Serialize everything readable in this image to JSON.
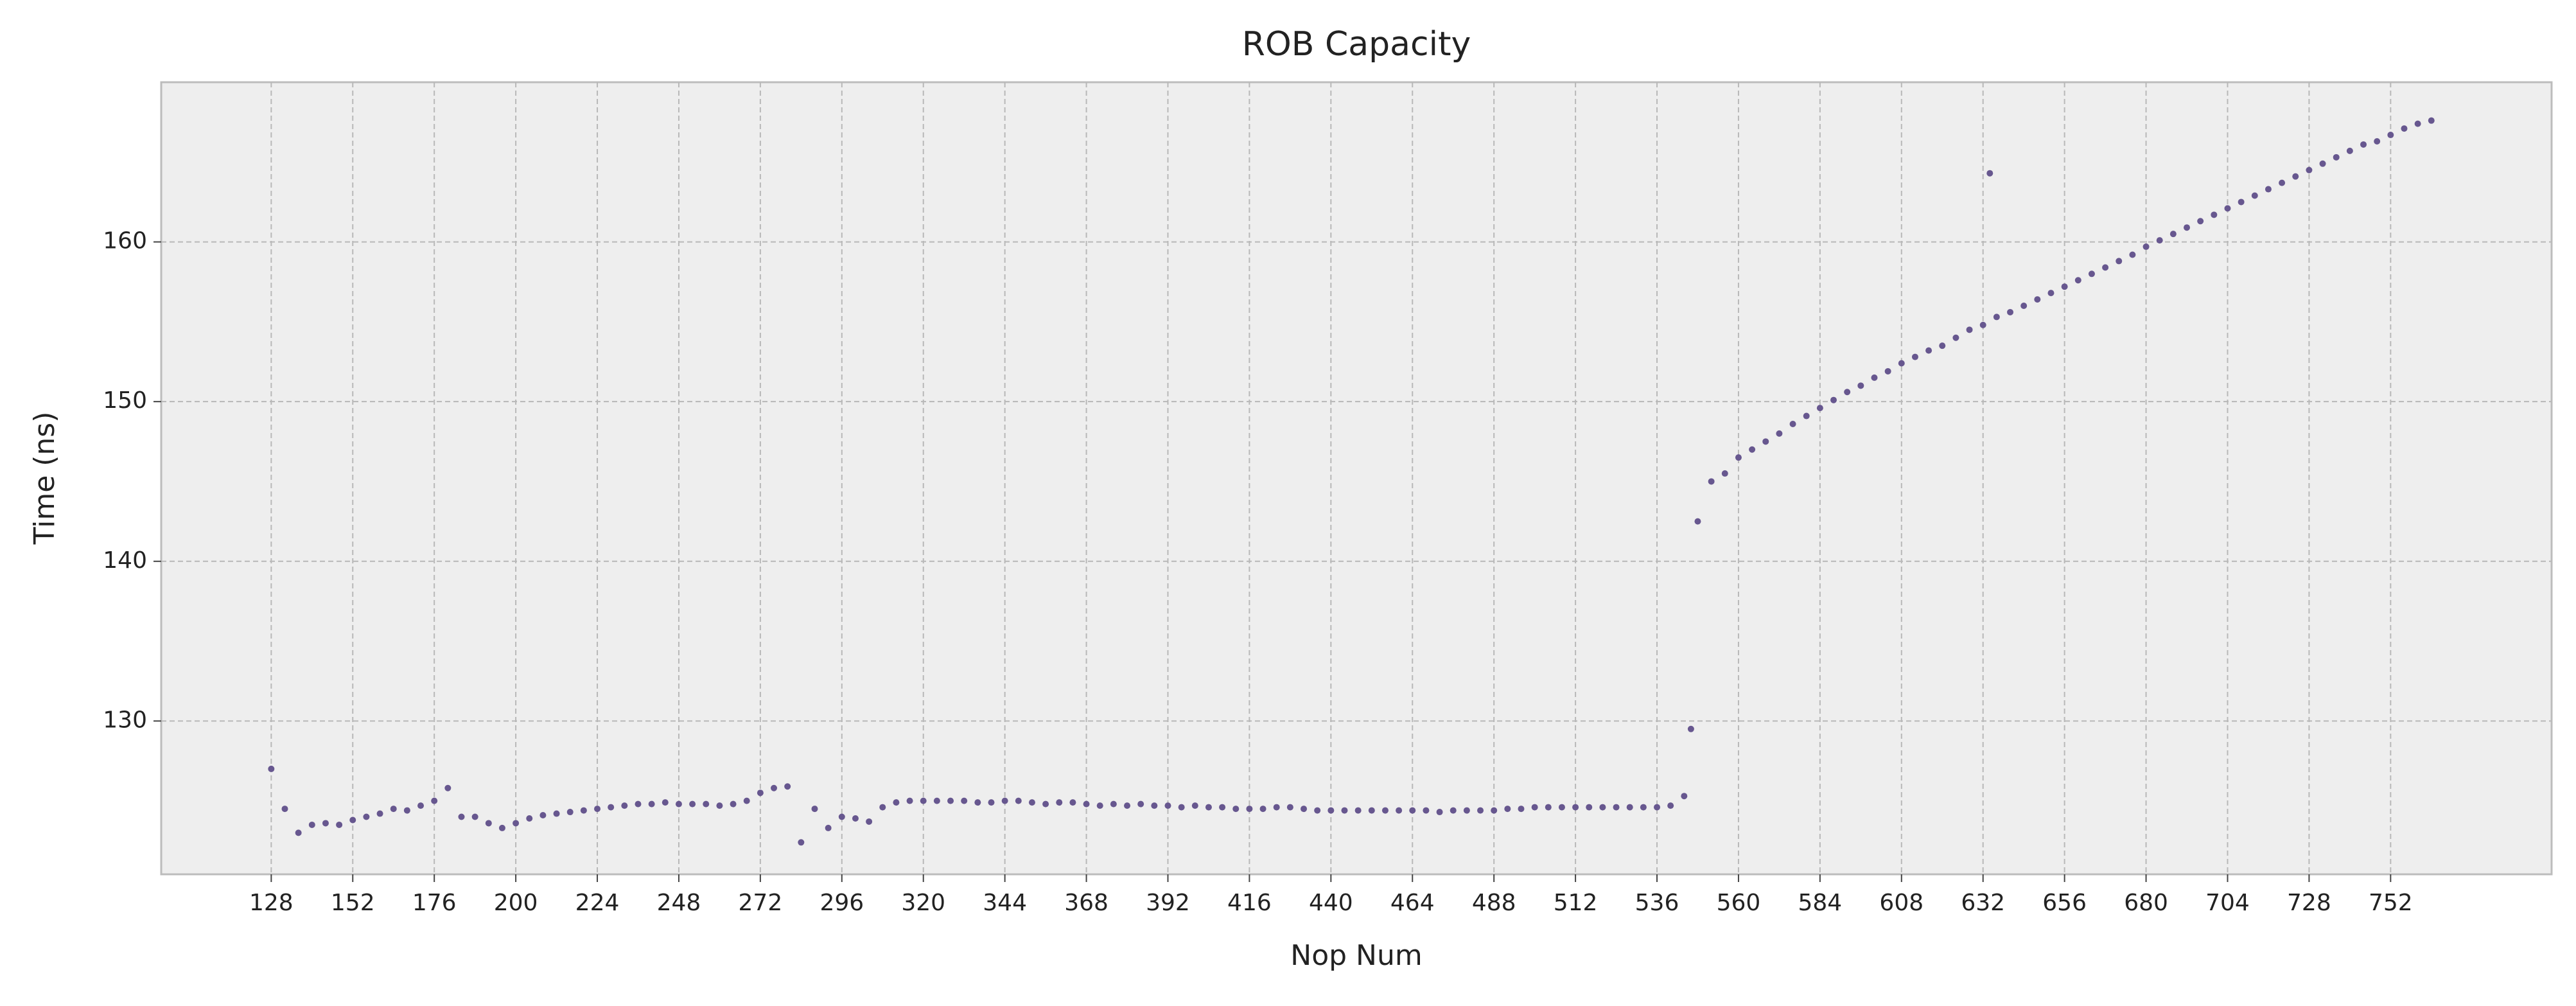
{
  "chart_data": {
    "type": "scatter",
    "title": "ROB Capacity",
    "x_label": "Nop Num",
    "y_label": "Time (ns)",
    "color": "#67578f",
    "grid": true,
    "xlim": [
      95.6,
      799.4
    ],
    "ylim": [
      120.4,
      170
    ],
    "xticks": [
      128,
      152,
      176,
      200,
      224,
      248,
      272,
      296,
      320,
      344,
      368,
      392,
      416,
      440,
      464,
      488,
      512,
      536,
      560,
      584,
      608,
      632,
      656,
      680,
      704,
      728,
      752
    ],
    "yticks": [
      130,
      140,
      150,
      160
    ],
    "x": [
      128,
      132,
      136,
      140,
      144,
      148,
      152,
      156,
      160,
      164,
      168,
      172,
      176,
      180,
      184,
      188,
      192,
      196,
      200,
      204,
      208,
      212,
      216,
      220,
      224,
      228,
      232,
      236,
      240,
      244,
      248,
      252,
      256,
      260,
      264,
      268,
      272,
      276,
      280,
      284,
      288,
      292,
      296,
      300,
      304,
      308,
      312,
      316,
      320,
      324,
      328,
      332,
      336,
      340,
      344,
      348,
      352,
      356,
      360,
      364,
      368,
      372,
      376,
      380,
      384,
      388,
      392,
      396,
      400,
      404,
      408,
      412,
      416,
      420,
      424,
      428,
      432,
      436,
      440,
      444,
      448,
      452,
      456,
      460,
      464,
      468,
      472,
      476,
      480,
      484,
      488,
      492,
      496,
      500,
      504,
      508,
      512,
      516,
      520,
      524,
      528,
      532,
      536,
      540,
      544,
      546,
      548,
      552,
      556,
      560,
      564,
      568,
      572,
      576,
      580,
      584,
      588,
      592,
      596,
      600,
      604,
      608,
      612,
      616,
      620,
      624,
      628,
      632,
      634,
      636,
      640,
      644,
      648,
      652,
      656,
      660,
      664,
      668,
      672,
      676,
      680,
      684,
      688,
      692,
      696,
      700,
      704,
      708,
      712,
      716,
      720,
      724,
      728,
      732,
      736,
      740,
      744,
      748,
      752,
      756,
      760,
      764
    ],
    "values": [
      127,
      124.5,
      123,
      123.5,
      123.6,
      123.5,
      123.8,
      124,
      124.2,
      124.5,
      124.4,
      124.7,
      125,
      125.8,
      124,
      124,
      123.6,
      123.3,
      123.6,
      123.9,
      124.1,
      124.2,
      124.3,
      124.4,
      124.5,
      124.6,
      124.7,
      124.8,
      124.8,
      124.9,
      124.8,
      124.8,
      124.8,
      124.7,
      124.8,
      125,
      125.5,
      125.8,
      125.9,
      122.4,
      124.5,
      123.3,
      124,
      123.9,
      123.7,
      124.6,
      124.9,
      125,
      125,
      125,
      125,
      125,
      124.9,
      124.9,
      125,
      125,
      124.9,
      124.8,
      124.9,
      124.9,
      124.8,
      124.7,
      124.8,
      124.7,
      124.8,
      124.7,
      124.7,
      124.6,
      124.7,
      124.6,
      124.6,
      124.5,
      124.5,
      124.5,
      124.6,
      124.6,
      124.5,
      124.4,
      124.4,
      124.4,
      124.4,
      124.4,
      124.4,
      124.4,
      124.4,
      124.4,
      124.3,
      124.4,
      124.4,
      124.4,
      124.4,
      124.5,
      124.5,
      124.6,
      124.6,
      124.6,
      124.6,
      124.6,
      124.6,
      124.6,
      124.6,
      124.6,
      124.6,
      124.7,
      125.3,
      129.5,
      142.5,
      145,
      145.5,
      146.5,
      147,
      147.5,
      148,
      148.6,
      149.1,
      149.6,
      150.1,
      150.6,
      151,
      151.5,
      151.9,
      152.4,
      152.8,
      153.2,
      153.5,
      154,
      154.5,
      154.8,
      164.3,
      155.3,
      155.6,
      156,
      156.4,
      156.8,
      157.2,
      157.6,
      158,
      158.4,
      158.8,
      159.2,
      159.7,
      160.1,
      160.5,
      160.9,
      161.3,
      161.7,
      162.1,
      162.5,
      162.9,
      163.3,
      163.7,
      164.1,
      164.5,
      164.9,
      165.3,
      165.7,
      166.1,
      166.3,
      166.7,
      167.1,
      167.4,
      167.6
    ]
  }
}
